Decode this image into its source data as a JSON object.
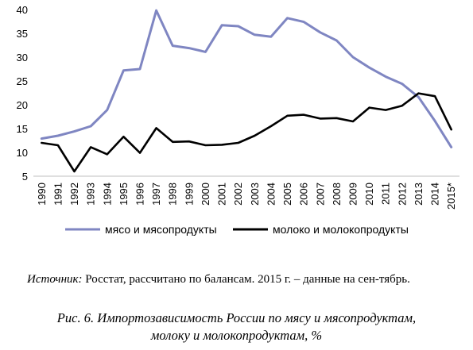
{
  "chart_data": {
    "type": "line",
    "categories": [
      "1990",
      "1991",
      "1992",
      "1993",
      "1994",
      "1995",
      "1996",
      "1997",
      "1998",
      "1999",
      "2000",
      "2001",
      "2002",
      "2003",
      "2004",
      "2005",
      "2006",
      "2007",
      "2008",
      "2009",
      "2010",
      "2011",
      "2012",
      "2013",
      "2014",
      "2015*"
    ],
    "series": [
      {
        "name": "мясо и мясопродукты",
        "color": "#7f86c2",
        "values": [
          12.9,
          13.5,
          14.4,
          15.5,
          18.9,
          27.2,
          27.5,
          39.8,
          32.4,
          31.9,
          31.1,
          36.7,
          36.5,
          34.7,
          34.3,
          38.2,
          37.4,
          35.2,
          33.5,
          30.0,
          27.8,
          25.9,
          24.4,
          21.6,
          16.6,
          11.1
        ]
      },
      {
        "name": "молоко и молокопродукты",
        "color": "#000000",
        "values": [
          12.0,
          11.5,
          6.0,
          11.1,
          9.6,
          13.3,
          9.9,
          15.1,
          12.2,
          12.3,
          11.5,
          11.6,
          12.0,
          13.5,
          15.5,
          17.7,
          17.9,
          17.1,
          17.2,
          16.5,
          19.4,
          18.9,
          19.8,
          22.4,
          21.8,
          14.8
        ]
      }
    ],
    "yticks": [
      5,
      10,
      15,
      20,
      25,
      30,
      35,
      40
    ],
    "ylim": [
      5,
      40
    ],
    "grid": false,
    "legend_position": "bottom"
  },
  "source": {
    "label": "Источник:",
    "text": "Росстат, рассчитано по балансам. 2015 г. – данные на сен-тябрь."
  },
  "caption": {
    "line1": "Рис. 6. Импортозависимость России по мясу и мясопродуктам,",
    "line2": "молоку и молокопродуктам, %"
  }
}
